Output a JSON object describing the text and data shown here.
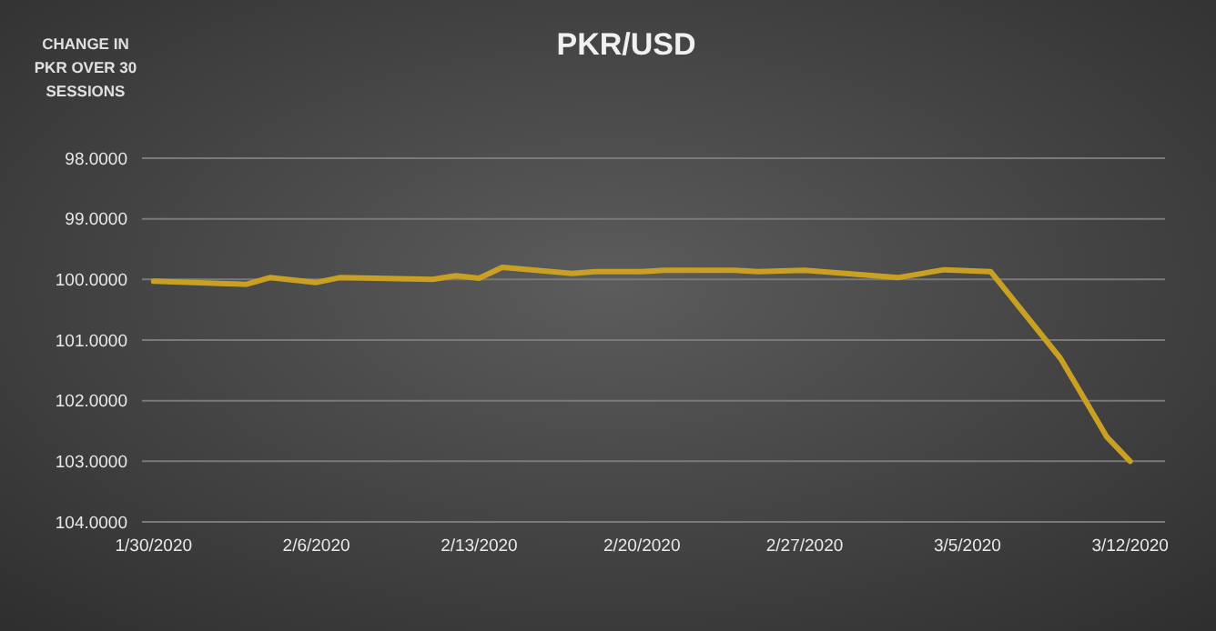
{
  "chart_data": {
    "type": "line",
    "title": "PKR/USD",
    "ylabel": "CHANGE IN PKR OVER 30 SESSIONS",
    "x": [
      "2020-01-30",
      "2020-02-03",
      "2020-02-04",
      "2020-02-06",
      "2020-02-07",
      "2020-02-11",
      "2020-02-12",
      "2020-02-13",
      "2020-02-14",
      "2020-02-17",
      "2020-02-18",
      "2020-02-20",
      "2020-02-21",
      "2020-02-24",
      "2020-02-25",
      "2020-02-27",
      "2020-03-02",
      "2020-03-04",
      "2020-03-06",
      "2020-03-09",
      "2020-03-10",
      "2020-03-11",
      "2020-03-12"
    ],
    "series": [
      {
        "color": "#c9a021",
        "values": [
          100.03,
          100.08,
          99.97,
          100.05,
          99.97,
          100.0,
          99.94,
          99.98,
          99.8,
          99.9,
          99.87,
          99.87,
          99.85,
          99.85,
          99.87,
          99.85,
          99.97,
          99.84,
          99.87,
          101.3,
          101.95,
          102.6,
          103.0
        ]
      }
    ],
    "xlim": [
      "2020-01-29T12:00",
      "2020-03-13T12:00"
    ],
    "xticks": [
      {
        "value": "2020-01-30",
        "label": "1/30/2020"
      },
      {
        "value": "2020-02-06",
        "label": "2/6/2020"
      },
      {
        "value": "2020-02-13",
        "label": "2/13/2020"
      },
      {
        "value": "2020-02-20",
        "label": "2/20/2020"
      },
      {
        "value": "2020-02-27",
        "label": "2/27/2020"
      },
      {
        "value": "2020-03-05",
        "label": "3/5/2020"
      },
      {
        "value": "2020-03-12",
        "label": "3/12/2020"
      }
    ],
    "ylim": [
      104,
      98
    ],
    "yticks": [
      {
        "value": 98,
        "label": "98.0000"
      },
      {
        "value": 99,
        "label": "99.0000"
      },
      {
        "value": 100,
        "label": "100.0000"
      },
      {
        "value": 101,
        "label": "101.0000"
      },
      {
        "value": 102,
        "label": "102.0000"
      },
      {
        "value": 103,
        "label": "103.0000"
      },
      {
        "value": 104,
        "label": "104.0000"
      }
    ],
    "grid": "y",
    "marker": "none",
    "line_style": "solid"
  }
}
